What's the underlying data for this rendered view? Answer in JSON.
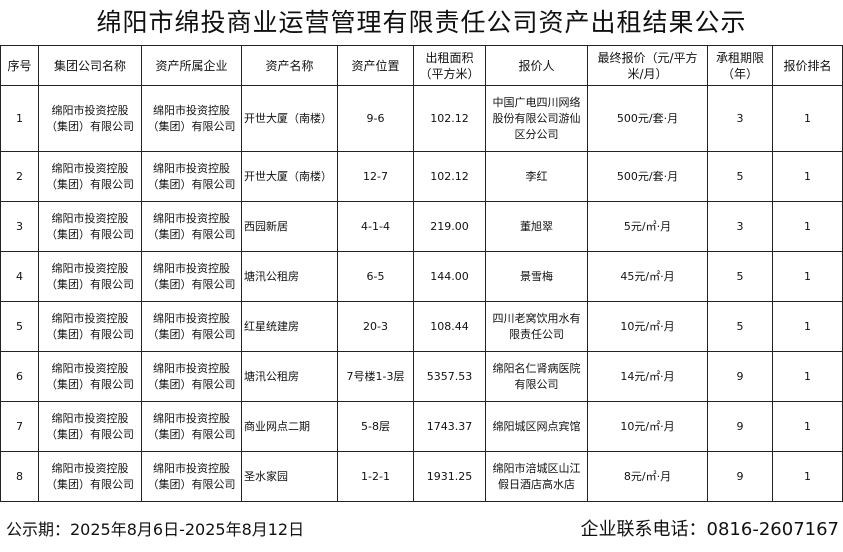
{
  "title": "绵阳市绵投商业运营管理有限责任公司资产出租结果公示",
  "headers": [
    "序号",
    "集团公司名称",
    "资产所属企业",
    "资产名称",
    "资产位置",
    "出租面积（平方米）",
    "报价人",
    "最终报价（元/平方米/月）",
    "承租期限（年）",
    "报价排名"
  ],
  "rows": [
    [
      "1",
      "绵阳市投资控股（集团）有限公司",
      "绵阳市投资控股（集团）有限公司",
      "开世大厦（南楼）",
      "9-6",
      "102.12",
      "中国广电四川网络股份有限公司游仙区分公司",
      "500元/套·月",
      "3",
      "1"
    ],
    [
      "2",
      "绵阳市投资控股（集团）有限公司",
      "绵阳市投资控股（集团）有限公司",
      "开世大厦（南楼）",
      "12-7",
      "102.12",
      "李红",
      "500元/套·月",
      "5",
      "1"
    ],
    [
      "3",
      "绵阳市投资控股（集团）有限公司",
      "绵阳市投资控股（集团）有限公司",
      "西园新居",
      "4-1-4",
      "219.00",
      "董旭翠",
      "5元/㎡·月",
      "3",
      "1"
    ],
    [
      "4",
      "绵阳市投资控股（集团）有限公司",
      "绵阳市投资控股（集团）有限公司",
      "塘汛公租房",
      "6-5",
      "144.00",
      "景雪梅",
      "45元/㎡·月",
      "5",
      "1"
    ],
    [
      "5",
      "绵阳市投资控股（集团）有限公司",
      "绵阳市投资控股（集团）有限公司",
      "红星统建房",
      "20-3",
      "108.44",
      "四川老窝饮用水有限责任公司",
      "10元/㎡·月",
      "5",
      "1"
    ],
    [
      "6",
      "绵阳市投资控股（集团）有限公司",
      "绵阳市投资控股（集团）有限公司",
      "塘汛公租房",
      "7号楼1-3层",
      "5357.53",
      "绵阳名仁肾病医院有限公司",
      "14元/㎡·月",
      "9",
      "1"
    ],
    [
      "7",
      "绵阳市投资控股（集团）有限公司",
      "绵阳市投资控股（集团）有限公司",
      "商业网点二期",
      "5-8层",
      "1743.37",
      "绵阳城区网点宾馆",
      "10元/㎡·月",
      "9",
      "1"
    ],
    [
      "8",
      "绵阳市投资控股（集团）有限公司",
      "绵阳市投资控股（集团）有限公司",
      "圣水家园",
      "1-2-1",
      "1931.25",
      "绵阳市涪城区山江假日酒店高水店",
      "8元/㎡·月",
      "9",
      "1"
    ]
  ],
  "footer": {
    "period": "公示期：2025年8月6日-2025年8月12日",
    "phone": "企业联系电话：0816-2607167"
  }
}
